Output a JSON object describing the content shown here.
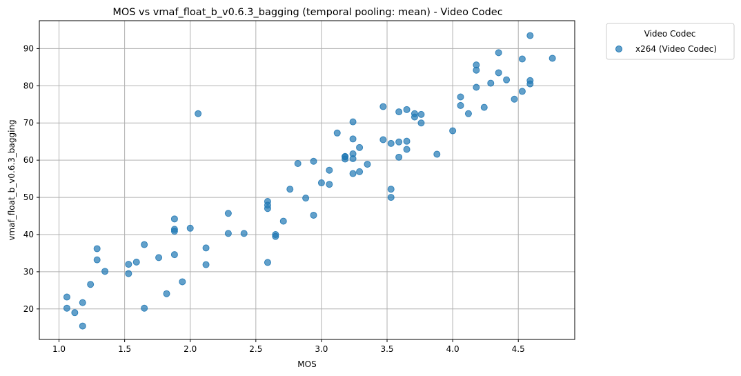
{
  "chart_data": {
    "type": "scatter",
    "title": "MOS vs vmaf_float_b_v0.6.3_bagging (temporal pooling: mean) - Video Codec",
    "xlabel": "MOS",
    "ylabel": "vmaf_float_b_v0.6.3_bagging",
    "xlim": [
      0.85,
      4.93
    ],
    "ylim": [
      11.8,
      97.5
    ],
    "xticks": [
      1.0,
      1.5,
      2.0,
      2.5,
      3.0,
      3.5,
      4.0,
      4.5
    ],
    "xtick_labels": [
      "1.0",
      "1.5",
      "2.0",
      "2.5",
      "3.0",
      "3.5",
      "4.0",
      "4.5"
    ],
    "yticks": [
      20,
      30,
      40,
      50,
      60,
      70,
      80,
      90
    ],
    "ytick_labels": [
      "20",
      "30",
      "40",
      "50",
      "60",
      "70",
      "80",
      "90"
    ],
    "grid": true,
    "legend": {
      "title": "Video Codec",
      "placement": "outside-top-right"
    },
    "colors": {
      "series": "#1f77b4",
      "grid": "#b0b0b0",
      "frame": "#000000"
    },
    "series": [
      {
        "name": "x264 (Video Codec)",
        "points": [
          [
            1.06,
            23.2
          ],
          [
            1.06,
            20.2
          ],
          [
            1.12,
            19.0
          ],
          [
            1.18,
            21.7
          ],
          [
            1.18,
            15.4
          ],
          [
            1.24,
            26.6
          ],
          [
            1.29,
            36.2
          ],
          [
            1.29,
            33.2
          ],
          [
            1.35,
            30.1
          ],
          [
            1.53,
            32.0
          ],
          [
            1.53,
            29.5
          ],
          [
            1.59,
            32.6
          ],
          [
            1.65,
            37.3
          ],
          [
            1.65,
            20.2
          ],
          [
            1.76,
            33.8
          ],
          [
            1.82,
            24.1
          ],
          [
            1.88,
            44.2
          ],
          [
            1.88,
            41.4
          ],
          [
            1.88,
            40.9
          ],
          [
            1.88,
            34.6
          ],
          [
            1.94,
            27.3
          ],
          [
            2.0,
            41.7
          ],
          [
            2.06,
            72.5
          ],
          [
            2.12,
            36.4
          ],
          [
            2.12,
            31.9
          ],
          [
            2.29,
            45.7
          ],
          [
            2.29,
            40.3
          ],
          [
            2.41,
            40.3
          ],
          [
            2.59,
            48.9
          ],
          [
            2.59,
            47.9
          ],
          [
            2.59,
            47.0
          ],
          [
            2.59,
            32.5
          ],
          [
            2.65,
            40.0
          ],
          [
            2.65,
            39.5
          ],
          [
            2.71,
            43.6
          ],
          [
            2.76,
            52.2
          ],
          [
            2.82,
            59.1
          ],
          [
            2.88,
            49.8
          ],
          [
            2.94,
            59.7
          ],
          [
            2.94,
            45.2
          ],
          [
            3.0,
            53.9
          ],
          [
            3.06,
            57.3
          ],
          [
            3.06,
            53.5
          ],
          [
            3.12,
            67.3
          ],
          [
            3.18,
            61.0
          ],
          [
            3.18,
            60.9
          ],
          [
            3.18,
            60.3
          ],
          [
            3.24,
            70.3
          ],
          [
            3.24,
            65.7
          ],
          [
            3.24,
            61.7
          ],
          [
            3.24,
            60.4
          ],
          [
            3.24,
            56.4
          ],
          [
            3.29,
            63.4
          ],
          [
            3.29,
            56.9
          ],
          [
            3.35,
            58.9
          ],
          [
            3.47,
            74.4
          ],
          [
            3.47,
            65.5
          ],
          [
            3.53,
            64.5
          ],
          [
            3.53,
            52.2
          ],
          [
            3.53,
            50.0
          ],
          [
            3.59,
            73.0
          ],
          [
            3.59,
            64.9
          ],
          [
            3.59,
            60.8
          ],
          [
            3.65,
            73.6
          ],
          [
            3.65,
            65.1
          ],
          [
            3.65,
            62.9
          ],
          [
            3.71,
            72.5
          ],
          [
            3.71,
            71.6
          ],
          [
            3.76,
            72.3
          ],
          [
            3.76,
            70.0
          ],
          [
            3.88,
            61.6
          ],
          [
            4.0,
            67.9
          ],
          [
            4.06,
            77.0
          ],
          [
            4.06,
            74.7
          ],
          [
            4.12,
            72.5
          ],
          [
            4.18,
            85.6
          ],
          [
            4.18,
            84.2
          ],
          [
            4.18,
            79.6
          ],
          [
            4.24,
            74.2
          ],
          [
            4.29,
            80.7
          ],
          [
            4.35,
            88.9
          ],
          [
            4.35,
            83.5
          ],
          [
            4.41,
            81.6
          ],
          [
            4.47,
            76.4
          ],
          [
            4.53,
            87.2
          ],
          [
            4.53,
            78.5
          ],
          [
            4.59,
            93.5
          ],
          [
            4.59,
            81.4
          ],
          [
            4.59,
            80.5
          ],
          [
            4.76,
            87.4
          ]
        ]
      }
    ]
  }
}
